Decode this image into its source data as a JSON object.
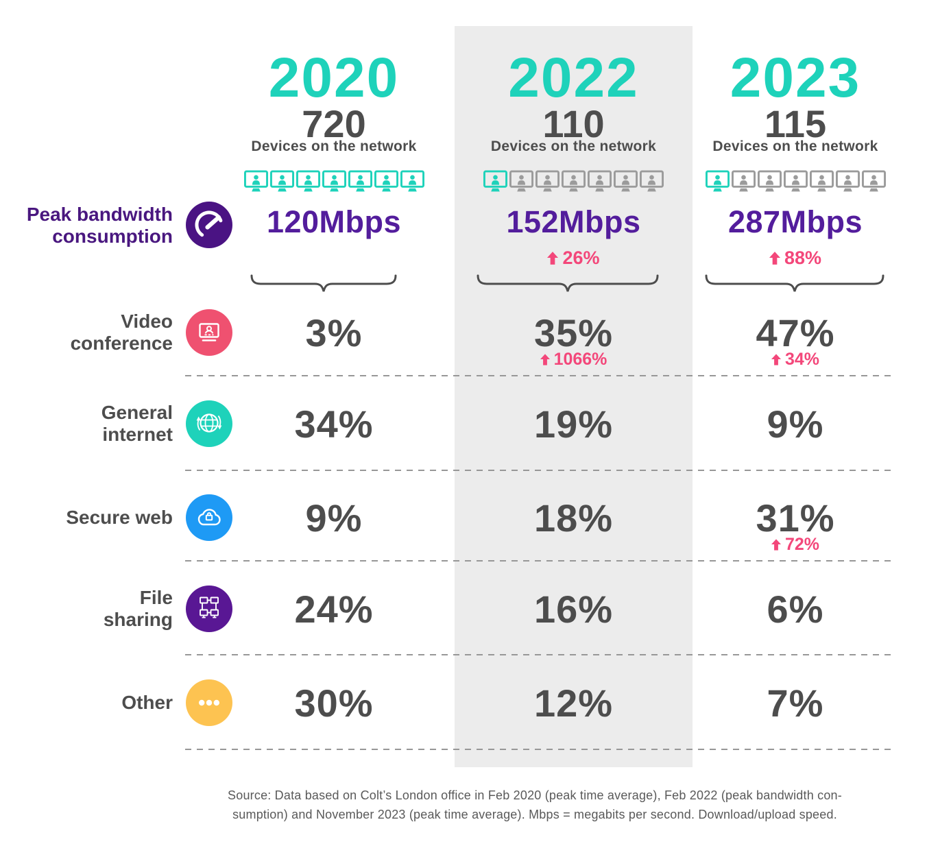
{
  "colors": {
    "teal": "#1ed2ba",
    "purple": "#49177f",
    "purple_value": "#531d9c",
    "pink": "#f3477a",
    "blue": "#1e9af5",
    "yellow": "#fdc351",
    "video_pink": "#ef5170",
    "file_purple": "#591794",
    "speedo_purple": "#4a1383",
    "text_dark": "#4d4d4d",
    "panel": "#ececec",
    "device_inactive": "#9b9b9b"
  },
  "columns": [
    {
      "year": "2020",
      "devices": "720",
      "devices_label": "Devices on the network",
      "device_icons": {
        "total": 7,
        "active": 7
      },
      "peak_mbps": "120Mbps",
      "peak_change": null
    },
    {
      "year": "2022",
      "devices": "110",
      "devices_label": "Devices on the network",
      "device_icons": {
        "total": 7,
        "active": 1
      },
      "peak_mbps": "152Mbps",
      "peak_change": "26%"
    },
    {
      "year": "2023",
      "devices": "115",
      "devices_label": "Devices on the network",
      "device_icons": {
        "total": 7,
        "active": 1
      },
      "peak_mbps": "287Mbps",
      "peak_change": "88%"
    }
  ],
  "peak_label": "Peak bandwidth\nconsumption",
  "rows": [
    {
      "label": "Video\nconference",
      "icon": "video-conference-icon",
      "values": [
        {
          "value": "3%",
          "change": null
        },
        {
          "value": "35%",
          "change": "1066%"
        },
        {
          "value": "47%",
          "change": "34%"
        }
      ]
    },
    {
      "label": "General\ninternet",
      "icon": "globe-icon",
      "values": [
        {
          "value": "34%",
          "change": null
        },
        {
          "value": "19%",
          "change": null
        },
        {
          "value": "9%",
          "change": null
        }
      ]
    },
    {
      "label": "Secure web",
      "icon": "cloud-lock-icon",
      "values": [
        {
          "value": "9%",
          "change": null
        },
        {
          "value": "18%",
          "change": null
        },
        {
          "value": "31%",
          "change": "72%"
        }
      ]
    },
    {
      "label": "File\nsharing",
      "icon": "file-sharing-icon",
      "values": [
        {
          "value": "24%",
          "change": null
        },
        {
          "value": "16%",
          "change": null
        },
        {
          "value": "6%",
          "change": null
        }
      ]
    },
    {
      "label": "Other",
      "icon": "ellipsis-icon",
      "values": [
        {
          "value": "30%",
          "change": null
        },
        {
          "value": "12%",
          "change": null
        },
        {
          "value": "7%",
          "change": null
        }
      ]
    }
  ],
  "source": {
    "line1": "Source: Data based on Colt’s London office in Feb 2020 (peak time average), Feb 2022 (peak bandwidth con-",
    "line2": "sumption) and November 2023 (peak time average). Mbps = megabits per second. Download/upload speed."
  },
  "chart_data": {
    "type": "table",
    "title": "Colt London office network usage comparison by year",
    "columns": [
      "2020",
      "2022",
      "2023"
    ],
    "devices_on_network": [
      720,
      110,
      115
    ],
    "peak_bandwidth_mbps": [
      120,
      152,
      287
    ],
    "peak_bandwidth_change_pct": {
      "2022": 26,
      "2023": 88
    },
    "categories": [
      "Video conference",
      "General internet",
      "Secure web",
      "File sharing",
      "Other"
    ],
    "series": [
      {
        "name": "2020",
        "values": [
          3,
          34,
          9,
          24,
          30
        ]
      },
      {
        "name": "2022",
        "values": [
          35,
          19,
          18,
          16,
          12
        ]
      },
      {
        "name": "2023",
        "values": [
          47,
          9,
          31,
          6,
          7
        ]
      }
    ],
    "category_change_pct": {
      "Video conference": {
        "2022": 1066,
        "2023": 34
      },
      "Secure web": {
        "2023": 72
      }
    }
  }
}
